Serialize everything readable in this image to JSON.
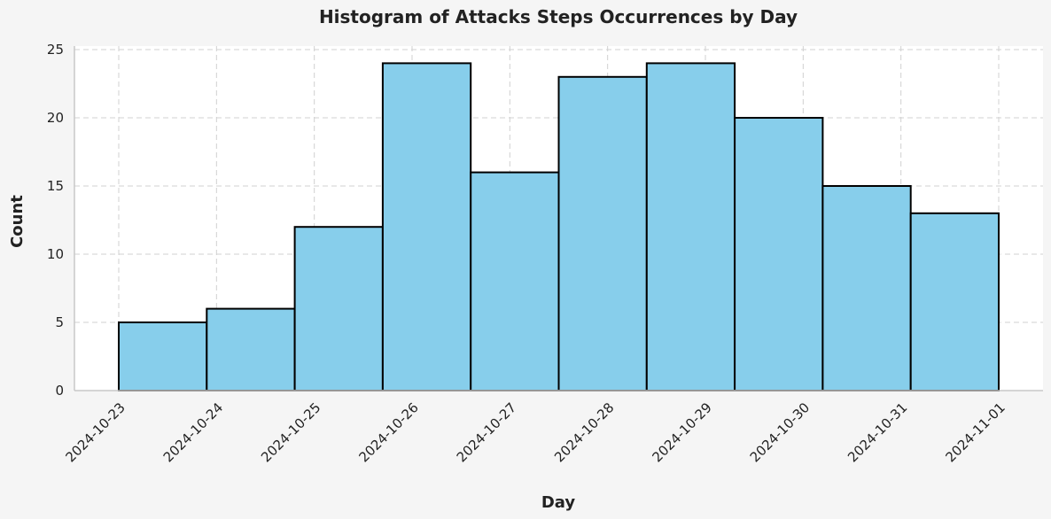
{
  "chart_data": {
    "type": "bar",
    "title": "Histogram of Attacks Steps Occurrences by Day",
    "xlabel": "Day",
    "ylabel": "Count",
    "x_ticks": [
      "2024-10-23",
      "2024-10-24",
      "2024-10-25",
      "2024-10-26",
      "2024-10-27",
      "2024-10-28",
      "2024-10-29",
      "2024-10-30",
      "2024-10-31",
      "2024-11-01"
    ],
    "y_ticks": [
      "0",
      "5",
      "10",
      "15",
      "20",
      "25"
    ],
    "ylim": [
      0,
      25
    ],
    "bins": [
      {
        "start": "2024-10-23",
        "end": "2024-10-24",
        "value": 5
      },
      {
        "start": "2024-10-24",
        "end": "2024-10-25",
        "value": 6
      },
      {
        "start": "2024-10-25",
        "end": "2024-10-26",
        "value": 12
      },
      {
        "start": "2024-10-26",
        "end": "2024-10-27",
        "value": 24
      },
      {
        "start": "2024-10-27",
        "end": "2024-10-27",
        "value": 16
      },
      {
        "start": "2024-10-27",
        "end": "2024-10-28",
        "value": 23
      },
      {
        "start": "2024-10-28",
        "end": "2024-10-29",
        "value": 24
      },
      {
        "start": "2024-10-29",
        "end": "2024-10-30",
        "value": 20
      },
      {
        "start": "2024-10-30",
        "end": "2024-10-31",
        "value": 15
      },
      {
        "start": "2024-10-31",
        "end": "2024-11-01",
        "value": 13
      }
    ],
    "values": [
      5,
      6,
      12,
      24,
      16,
      23,
      24,
      20,
      15,
      13
    ],
    "grid": true,
    "bar_color": "#87ceeb",
    "edge_color": "#000000"
  }
}
